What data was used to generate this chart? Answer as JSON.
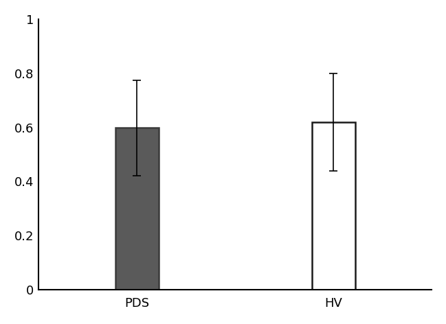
{
  "categories": [
    "PDS",
    "HV"
  ],
  "values": [
    0.6,
    0.62
  ],
  "errors_upper": [
    0.175,
    0.18
  ],
  "errors_lower": [
    0.18,
    0.18
  ],
  "bar_colors": [
    "#5a5a5a",
    "#ffffff"
  ],
  "bar_edgecolors": [
    "#3a3a3a",
    "#1a1a1a"
  ],
  "bar_width": 0.22,
  "bar_positions": [
    1,
    2
  ],
  "xlim": [
    0.5,
    2.5
  ],
  "ylim": [
    0,
    1.0
  ],
  "yticks": [
    0,
    0.2,
    0.4,
    0.6,
    0.8,
    1.0
  ],
  "ytick_labels": [
    "0",
    "0.2",
    "0.4",
    "0.6",
    "0.8",
    "1"
  ],
  "figsize": [
    6.49,
    4.72
  ],
  "dpi": 100,
  "background_color": "#ffffff",
  "error_capsize": 4,
  "error_linewidth": 1.2,
  "error_color": "#000000",
  "tick_fontsize": 13,
  "label_fontsize": 13,
  "spine_linewidth": 1.5
}
